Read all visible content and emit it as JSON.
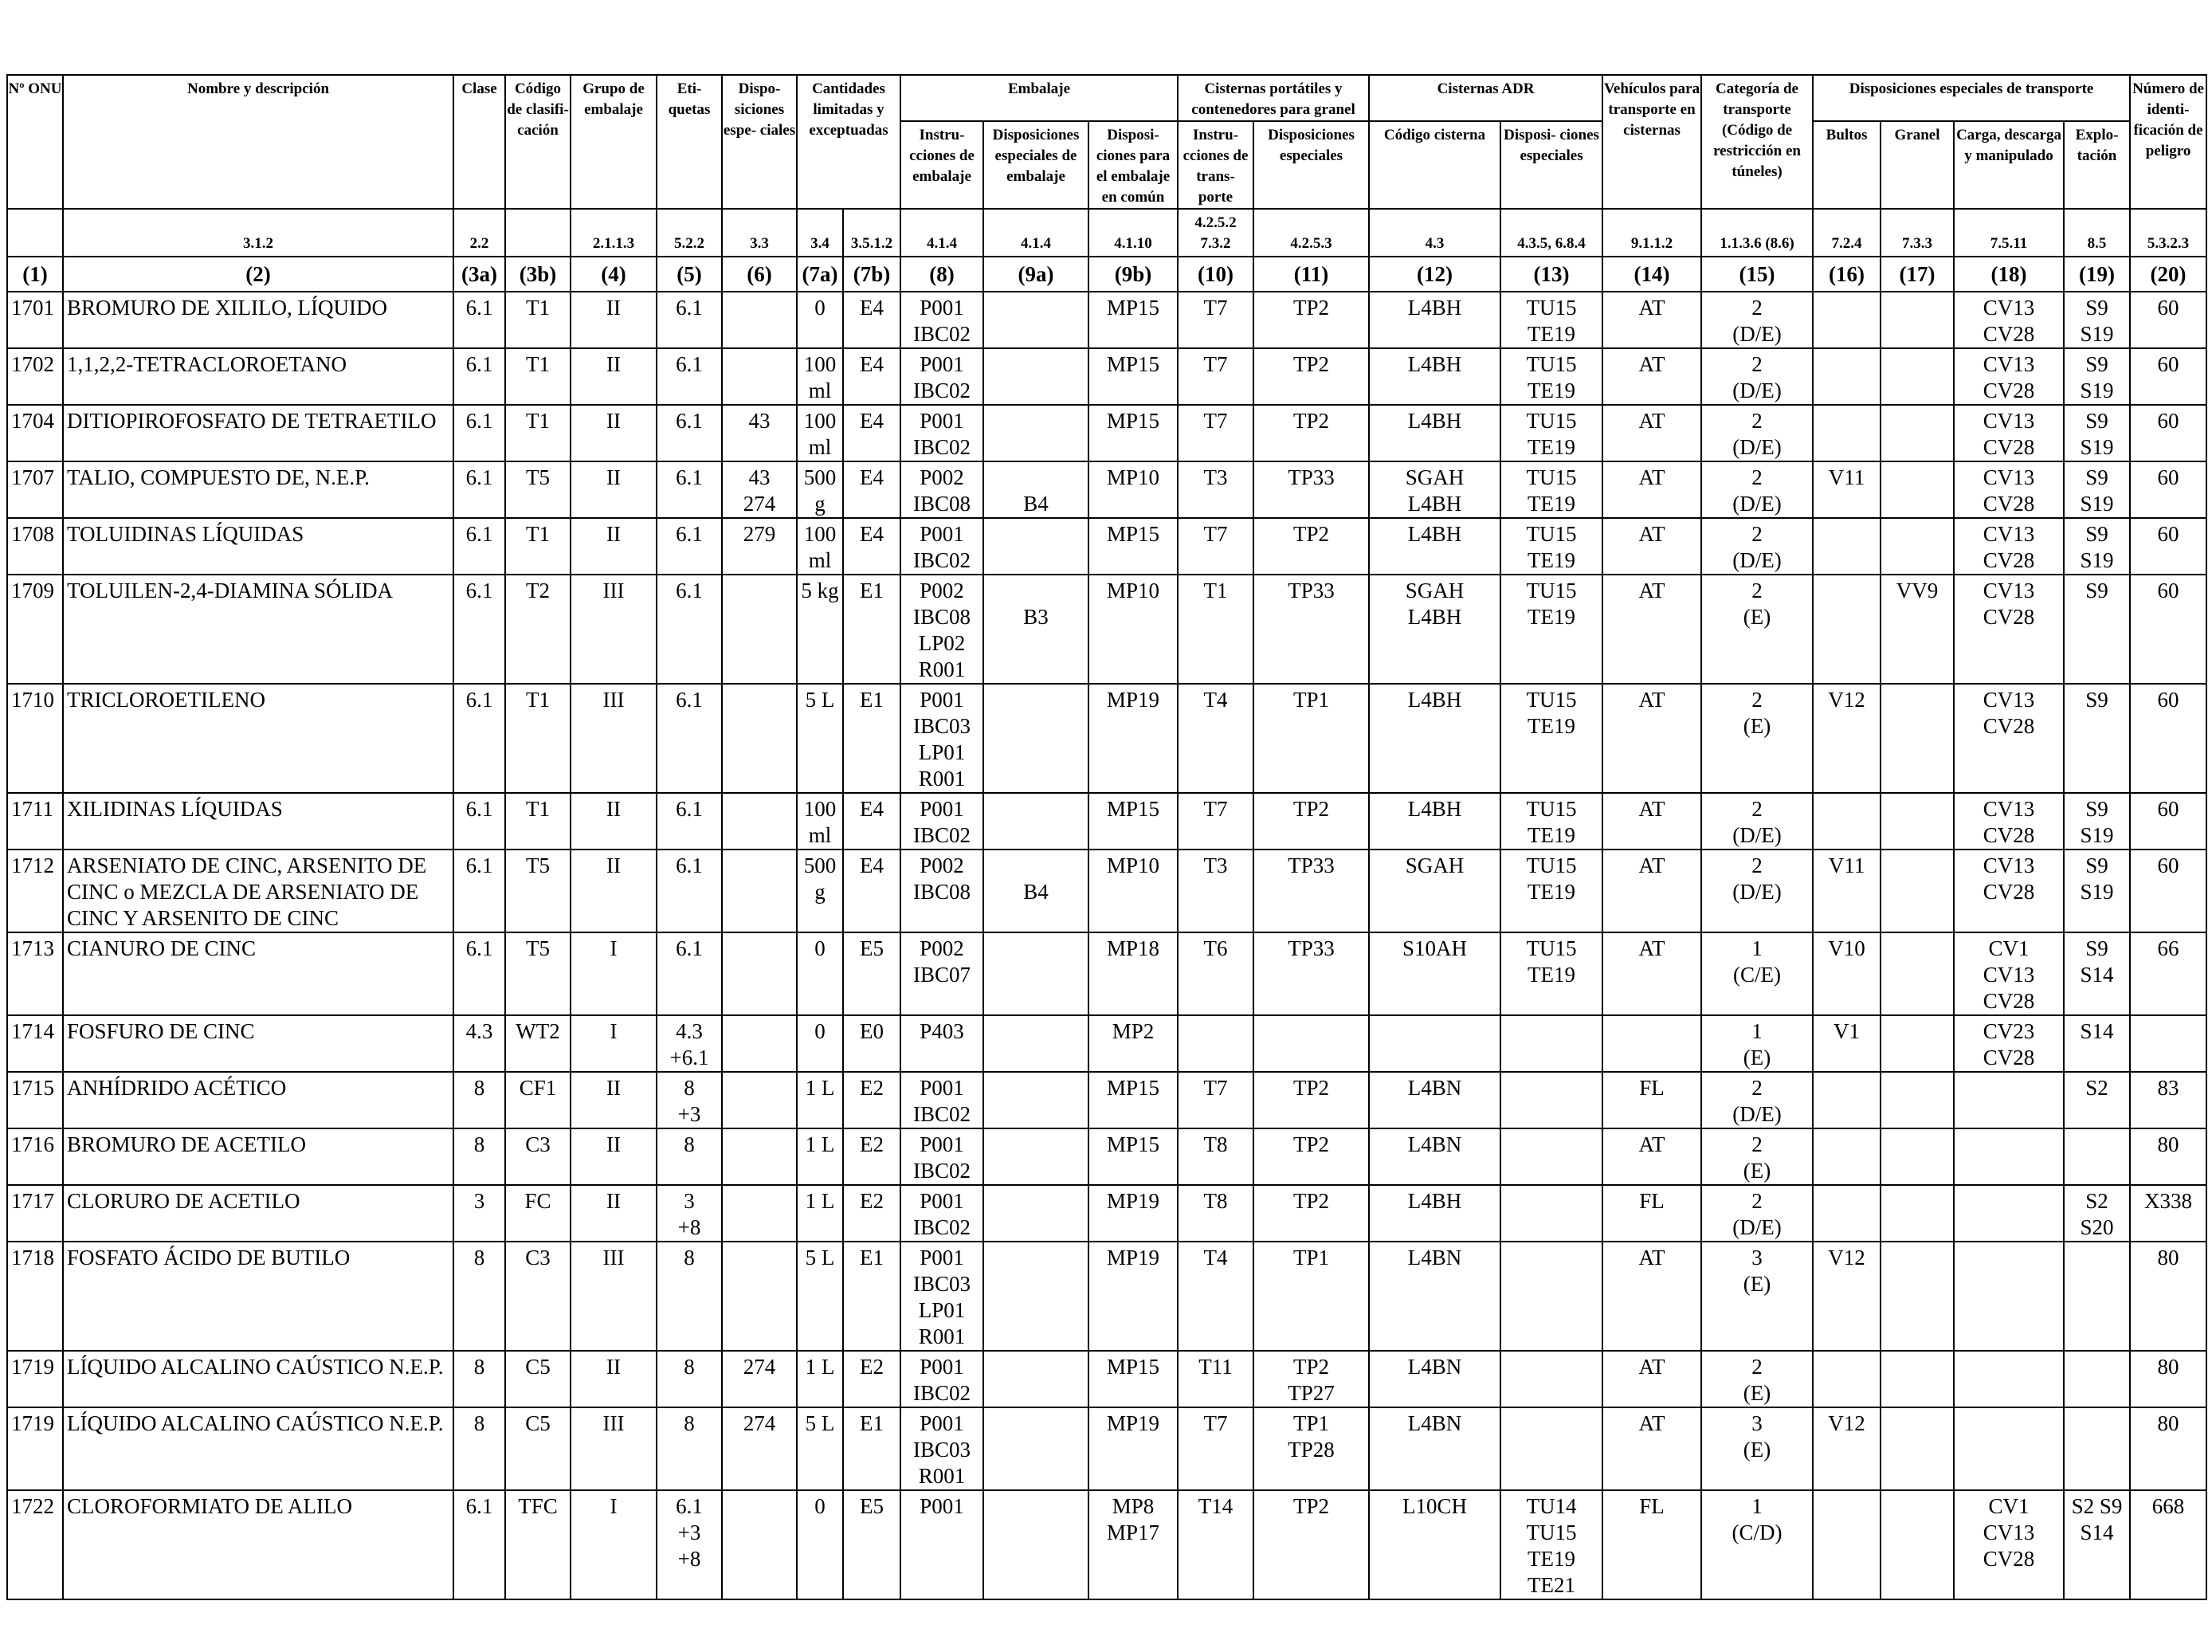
{
  "headers": {
    "onu": "Nº ONU",
    "nombre": "Nombre y descripción",
    "clase": "Clase",
    "codigo": "Código de clasifi- cación",
    "grupo": "Grupo de embalaje",
    "etiquetas": "Eti- quetas",
    "dispesp": "Dispo- siciones espe- ciales",
    "cantidades": "Cantidades limitadas y exceptuadas",
    "embalaje": "Embalaje",
    "emb_instr": "Instru- cciones de embalaje",
    "emb_disp": "Disposiciones especiales de embalaje",
    "emb_comun": "Disposi- ciones para el embalaje en común",
    "cisternas_port": "Cisternas portátiles y contenedores para granel",
    "cp_instr": "Instru- cciones de trans- porte",
    "cp_disp": "Disposiciones especiales",
    "cisternas_adr": "Cisternas ADR",
    "cadr_codigo": "Código cisterna",
    "cadr_disp": "Disposi- ciones especiales",
    "vehiculos": "Vehículos para transporte en cisternas",
    "categoria": "Categoría de transporte (Código de restricción en túneles)",
    "dispesp_transporte": "Disposiciones especiales de transporte",
    "bultos": "Bultos",
    "granel": "Granel",
    "carga": "Carga, descarga y manipulado",
    "explotacion": "Explo- tación",
    "numero": "Número de identi- ficación de peligro"
  },
  "refs": [
    "",
    "3.1.2",
    "2.2",
    "",
    "2.1.1.3",
    "5.2.2",
    "3.3",
    "3.4",
    "3.5.1.2",
    "4.1.4",
    "4.1.4",
    "4.1.10",
    "4.2.5.2 7.3.2",
    "4.2.5.3",
    "4.3",
    "4.3.5, 6.8.4",
    "9.1.1.2",
    "1.1.3.6 (8.6)",
    "7.2.4",
    "7.3.3",
    "7.5.11",
    "8.5",
    "5.3.2.3"
  ],
  "col_numbers": [
    "(1)",
    "(2)",
    "(3a)",
    "(3b)",
    "(4)",
    "(5)",
    "(6)",
    "(7a)",
    "(7b)",
    "(8)",
    "(9a)",
    "(9b)",
    "(10)",
    "(11)",
    "(12)",
    "(13)",
    "(14)",
    "(15)",
    "(16)",
    "(17)",
    "(18)",
    "(19)",
    "(20)"
  ],
  "rows": [
    {
      "onu": "1701",
      "nombre": "BROMURO DE XILILO, LÍQUIDO",
      "clase": "6.1",
      "codigo": "T1",
      "grupo": "II",
      "etiquetas": "6.1",
      "dispesp": "",
      "c7a": "0",
      "c7b": "E4",
      "instr": "P001\nIBC02",
      "dispemb": "",
      "comun": "MP15",
      "cp_instr": "T7",
      "cp_disp": "TP2",
      "cadr": "L4BH",
      "cadr_disp": "TU15\nTE19",
      "vehiculo": "AT",
      "categoria": "2\n(D/E)",
      "bultos": "",
      "granel": "",
      "carga": "CV13\nCV28",
      "explot": "S9\nS19",
      "numero": "60"
    },
    {
      "onu": "1702",
      "nombre": "1,1,2,2-TETRACLOROETANO",
      "clase": "6.1",
      "codigo": "T1",
      "grupo": "II",
      "etiquetas": "6.1",
      "dispesp": "",
      "c7a": "100\nml",
      "c7b": "E4",
      "instr": "P001\nIBC02",
      "dispemb": "",
      "comun": "MP15",
      "cp_instr": "T7",
      "cp_disp": "TP2",
      "cadr": "L4BH",
      "cadr_disp": "TU15\nTE19",
      "vehiculo": "AT",
      "categoria": "2\n(D/E)",
      "bultos": "",
      "granel": "",
      "carga": "CV13\nCV28",
      "explot": "S9\nS19",
      "numero": "60"
    },
    {
      "onu": "1704",
      "nombre": "DITIOPIROFOSFATO DE TETRAETILO",
      "clase": "6.1",
      "codigo": "T1",
      "grupo": "II",
      "etiquetas": "6.1",
      "dispesp": "43",
      "c7a": "100\nml",
      "c7b": "E4",
      "instr": "P001\nIBC02",
      "dispemb": "",
      "comun": "MP15",
      "cp_instr": "T7",
      "cp_disp": "TP2",
      "cadr": "L4BH",
      "cadr_disp": "TU15\nTE19",
      "vehiculo": "AT",
      "categoria": "2\n(D/E)",
      "bultos": "",
      "granel": "",
      "carga": "CV13\nCV28",
      "explot": "S9\nS19",
      "numero": "60"
    },
    {
      "onu": "1707",
      "nombre": "TALIO, COMPUESTO DE, N.E.P.",
      "clase": "6.1",
      "codigo": "T5",
      "grupo": "II",
      "etiquetas": "6.1",
      "dispesp": "43\n274",
      "c7a": "500\ng",
      "c7b": "E4",
      "instr": "P002\nIBC08",
      "dispemb": "\nB4",
      "comun": "MP10",
      "cp_instr": "T3",
      "cp_disp": "TP33",
      "cadr": "SGAH\nL4BH",
      "cadr_disp": "TU15\nTE19",
      "vehiculo": "AT",
      "categoria": "2\n(D/E)",
      "bultos": "V11",
      "granel": "",
      "carga": "CV13\nCV28",
      "explot": "S9\nS19",
      "numero": "60"
    },
    {
      "onu": "1708",
      "nombre": "TOLUIDINAS LÍQUIDAS",
      "clase": "6.1",
      "codigo": "T1",
      "grupo": "II",
      "etiquetas": "6.1",
      "dispesp": "279",
      "c7a": "100\nml",
      "c7b": "E4",
      "instr": "P001\nIBC02",
      "dispemb": "",
      "comun": "MP15",
      "cp_instr": "T7",
      "cp_disp": "TP2",
      "cadr": "L4BH",
      "cadr_disp": "TU15\nTE19",
      "vehiculo": "AT",
      "categoria": "2\n(D/E)",
      "bultos": "",
      "granel": "",
      "carga": "CV13\nCV28",
      "explot": "S9\nS19",
      "numero": "60"
    },
    {
      "onu": "1709",
      "nombre": "TOLUILEN-2,4-DIAMINA SÓLIDA",
      "clase": "6.1",
      "codigo": "T2",
      "grupo": "III",
      "etiquetas": "6.1",
      "dispesp": "",
      "c7a": "5 kg",
      "c7b": "E1",
      "instr": "P002\nIBC08\nLP02\nR001",
      "dispemb": "\nB3",
      "comun": "MP10",
      "cp_instr": "T1",
      "cp_disp": "TP33",
      "cadr": "SGAH\nL4BH",
      "cadr_disp": "TU15\nTE19",
      "vehiculo": "AT",
      "categoria": "2\n(E)",
      "bultos": "",
      "granel": "VV9",
      "carga": "CV13\nCV28",
      "explot": "S9",
      "numero": "60"
    },
    {
      "onu": "1710",
      "nombre": "TRICLOROETILENO",
      "clase": "6.1",
      "codigo": "T1",
      "grupo": "III",
      "etiquetas": "6.1",
      "dispesp": "",
      "c7a": "5 L",
      "c7b": "E1",
      "instr": "P001\nIBC03\nLP01\nR001",
      "dispemb": "",
      "comun": "MP19",
      "cp_instr": "T4",
      "cp_disp": "TP1",
      "cadr": "L4BH",
      "cadr_disp": "TU15\nTE19",
      "vehiculo": "AT",
      "categoria": "2\n(E)",
      "bultos": "V12",
      "granel": "",
      "carga": "CV13\nCV28",
      "explot": "S9",
      "numero": "60"
    },
    {
      "onu": "1711",
      "nombre": "XILIDINAS LÍQUIDAS",
      "clase": "6.1",
      "codigo": "T1",
      "grupo": "II",
      "etiquetas": "6.1",
      "dispesp": "",
      "c7a": "100\nml",
      "c7b": "E4",
      "instr": "P001\nIBC02",
      "dispemb": "",
      "comun": "MP15",
      "cp_instr": "T7",
      "cp_disp": "TP2",
      "cadr": "L4BH",
      "cadr_disp": "TU15\nTE19",
      "vehiculo": "AT",
      "categoria": "2\n(D/E)",
      "bultos": "",
      "granel": "",
      "carga": "CV13\nCV28",
      "explot": "S9\nS19",
      "numero": "60"
    },
    {
      "onu": "1712",
      "nombre": "ARSENIATO DE CINC, ARSENITO DE\nCINC o MEZCLA DE ARSENIATO DE\nCINC Y ARSENITO DE CINC",
      "clase": "6.1",
      "codigo": "T5",
      "grupo": "II",
      "etiquetas": "6.1",
      "dispesp": "",
      "c7a": "500\ng",
      "c7b": "E4",
      "instr": "P002\nIBC08",
      "dispemb": "\nB4",
      "comun": "MP10",
      "cp_instr": "T3",
      "cp_disp": "TP33",
      "cadr": "SGAH",
      "cadr_disp": "TU15\nTE19",
      "vehiculo": "AT",
      "categoria": "2\n(D/E)",
      "bultos": "V11",
      "granel": "",
      "carga": "CV13\nCV28",
      "explot": "S9\nS19",
      "numero": "60"
    },
    {
      "onu": "1713",
      "nombre": "CIANURO DE CINC",
      "clase": "6.1",
      "codigo": "T5",
      "grupo": "I",
      "etiquetas": "6.1",
      "dispesp": "",
      "c7a": "0",
      "c7b": "E5",
      "instr": "P002\nIBC07",
      "dispemb": "",
      "comun": "MP18",
      "cp_instr": "T6",
      "cp_disp": "TP33",
      "cadr": "S10AH",
      "cadr_disp": "TU15\nTE19",
      "vehiculo": "AT",
      "categoria": "1\n(C/E)",
      "bultos": "V10",
      "granel": "",
      "carga": "CV1\nCV13\nCV28",
      "explot": "S9\nS14",
      "numero": "66"
    },
    {
      "onu": "1714",
      "nombre": "FOSFURO DE CINC",
      "clase": "4.3",
      "codigo": "WT2",
      "grupo": "I",
      "etiquetas": "4.3\n+6.1",
      "dispesp": "",
      "c7a": "0",
      "c7b": "E0",
      "instr": "P403",
      "dispemb": "",
      "comun": "MP2",
      "cp_instr": "",
      "cp_disp": "",
      "cadr": "",
      "cadr_disp": "",
      "vehiculo": "",
      "categoria": "1\n(E)",
      "bultos": "V1",
      "granel": "",
      "carga": "CV23\nCV28",
      "explot": "S14",
      "numero": ""
    },
    {
      "onu": "1715",
      "nombre": "ANHÍDRIDO ACÉTICO",
      "clase": "8",
      "codigo": "CF1",
      "grupo": "II",
      "etiquetas": "8\n+3",
      "dispesp": "",
      "c7a": "1 L",
      "c7b": "E2",
      "instr": "P001\nIBC02",
      "dispemb": "",
      "comun": "MP15",
      "cp_instr": "T7",
      "cp_disp": "TP2",
      "cadr": "L4BN",
      "cadr_disp": "",
      "vehiculo": "FL",
      "categoria": "2\n(D/E)",
      "bultos": "",
      "granel": "",
      "carga": "",
      "explot": "S2",
      "numero": "83"
    },
    {
      "onu": "1716",
      "nombre": "BROMURO DE ACETILO",
      "clase": "8",
      "codigo": "C3",
      "grupo": "II",
      "etiquetas": "8",
      "dispesp": "",
      "c7a": "1 L",
      "c7b": "E2",
      "instr": "P001\nIBC02",
      "dispemb": "",
      "comun": "MP15",
      "cp_instr": "T8",
      "cp_disp": "TP2",
      "cadr": "L4BN",
      "cadr_disp": "",
      "vehiculo": "AT",
      "categoria": "2\n(E)",
      "bultos": "",
      "granel": "",
      "carga": "",
      "explot": "",
      "numero": "80"
    },
    {
      "onu": "1717",
      "nombre": "CLORURO DE ACETILO",
      "clase": "3",
      "codigo": "FC",
      "grupo": "II",
      "etiquetas": "3\n+8",
      "dispesp": "",
      "c7a": "1 L",
      "c7b": "E2",
      "instr": "P001\nIBC02",
      "dispemb": "",
      "comun": "MP19",
      "cp_instr": "T8",
      "cp_disp": "TP2",
      "cadr": "L4BH",
      "cadr_disp": "",
      "vehiculo": "FL",
      "categoria": "2\n(D/E)",
      "bultos": "",
      "granel": "",
      "carga": "",
      "explot": "S2\nS20",
      "numero": "X338"
    },
    {
      "onu": "1718",
      "nombre": "FOSFATO ÁCIDO DE BUTILO",
      "clase": "8",
      "codigo": "C3",
      "grupo": "III",
      "etiquetas": "8",
      "dispesp": "",
      "c7a": "5 L",
      "c7b": "E1",
      "instr": "P001\nIBC03\nLP01\nR001",
      "dispemb": "",
      "comun": "MP19",
      "cp_instr": "T4",
      "cp_disp": "TP1",
      "cadr": "L4BN",
      "cadr_disp": "",
      "vehiculo": "AT",
      "categoria": "3\n(E)",
      "bultos": "V12",
      "granel": "",
      "carga": "",
      "explot": "",
      "numero": "80"
    },
    {
      "onu": "1719",
      "nombre": "LÍQUIDO ALCALINO CAÚSTICO N.E.P.",
      "clase": "8",
      "codigo": "C5",
      "grupo": "II",
      "etiquetas": "8",
      "dispesp": "274",
      "c7a": "1 L",
      "c7b": "E2",
      "instr": "P001\nIBC02",
      "dispemb": "",
      "comun": "MP15",
      "cp_instr": "T11",
      "cp_disp": "TP2\nTP27",
      "cadr": "L4BN",
      "cadr_disp": "",
      "vehiculo": "AT",
      "categoria": "2\n(E)",
      "bultos": "",
      "granel": "",
      "carga": "",
      "explot": "",
      "numero": "80"
    },
    {
      "onu": "1719",
      "nombre": "LÍQUIDO ALCALINO CAÚSTICO N.E.P.",
      "clase": "8",
      "codigo": "C5",
      "grupo": "III",
      "etiquetas": "8",
      "dispesp": "274",
      "c7a": "5 L",
      "c7b": "E1",
      "instr": "P001\nIBC03\nR001",
      "dispemb": "",
      "comun": "MP19",
      "cp_instr": "T7",
      "cp_disp": "TP1\nTP28",
      "cadr": "L4BN",
      "cadr_disp": "",
      "vehiculo": "AT",
      "categoria": "3\n(E)",
      "bultos": "V12",
      "granel": "",
      "carga": "",
      "explot": "",
      "numero": "80"
    },
    {
      "onu": "1722",
      "nombre": "CLOROFORMIATO DE ALILO",
      "clase": "6.1",
      "codigo": "TFC",
      "grupo": "I",
      "etiquetas": "6.1\n+3\n+8",
      "dispesp": "",
      "c7a": "0",
      "c7b": "E5",
      "instr": "P001",
      "dispemb": "",
      "comun": "MP8\nMP17",
      "cp_instr": "T14",
      "cp_disp": "TP2",
      "cadr": "L10CH",
      "cadr_disp": "TU14\nTU15\nTE19\nTE21",
      "vehiculo": "FL",
      "categoria": "1\n(C/D)",
      "bultos": "",
      "granel": "",
      "carga": "CV1\nCV13\nCV28",
      "explot": "S2 S9\nS14",
      "numero": "668"
    }
  ]
}
